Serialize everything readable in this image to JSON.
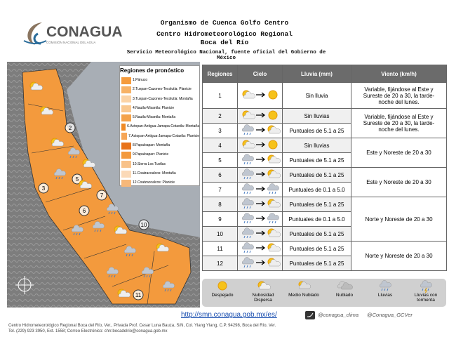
{
  "header": {
    "logo": "CONAGUA",
    "logo_subtitle": "COMISIÓN NACIONAL DEL AGUA",
    "title": "Organismo de Cuenca Golfo Centro",
    "subtitle": "Centro Hidrometeorológico Regional",
    "location": "Boca del Río",
    "source": "Servicio Meteorológico Nacional, fuente oficial del Gobierno de México"
  },
  "map": {
    "legend_title": "Regiones de pronóstico",
    "regions": [
      "1.Pánuco",
      "2.Tuxpan-Cazones-Tecolutla: Planicie",
      "3.Tuxpan-Cazones-Tecolutla: Montaña",
      "4.Nautla-Misantla: Planicie",
      "5.Nautla-Misantla: Montaña",
      "6.Actopan-Antigua-Jamapa-Cotaxtla: Montaña",
      "7.Actopan-Antigua-Jamapa-Cotaxtla: Planicie",
      "8.Papaloapan: Montaña",
      "9.Papaloapan: Planicie",
      "10.Sierra Los Tuxtlas",
      "11.Coatzacoalcos: Montaña",
      "12.Coatzacoalcos: Planicie"
    ],
    "markers": [
      "2",
      "3",
      "5",
      "6",
      "7",
      "10",
      "11"
    ]
  },
  "table": {
    "headers": [
      "Regiones",
      "Cielo",
      "Lluvia (mm)",
      "Viento (km/h)"
    ],
    "rows": [
      {
        "region": "1",
        "rain": "Sin lluvia"
      },
      {
        "region": "2",
        "rain": "Sin lluvias"
      },
      {
        "region": "3",
        "rain": "Puntuales de 5.1 a 25"
      },
      {
        "region": "4",
        "rain": "Sin lluvias"
      },
      {
        "region": "5",
        "rain": "Puntuales de 5.1 a 25"
      },
      {
        "region": "6",
        "rain": "Puntuales de 5.1 a 25"
      },
      {
        "region": "7",
        "rain": "Puntuales de 0.1 a 5.0"
      },
      {
        "region": "8",
        "rain": "Puntuales de 5.1 a 25"
      },
      {
        "region": "9",
        "rain": "Puntuales de 0.1 a 5.0"
      },
      {
        "region": "10",
        "rain": "Puntuales de 5.1 a 25"
      },
      {
        "region": "11",
        "rain": "Puntuales de 5.1 a 25"
      },
      {
        "region": "12",
        "rain": "Puntuales de 5.1 a 25"
      }
    ],
    "wind": [
      "Variable, fijándose al Este y Sureste de 20 a 30, la tarde-noche del lunes.",
      "Variable, fijándose al Este y Sureste de 20 a 30, la tarde-noche del lunes.",
      "Este y Noreste de 20 a 30",
      "Este y Noreste de 20 a 30",
      "Norte y Noreste de 20 a 30",
      "Norte y Noreste de 20 a 30"
    ]
  },
  "sky_legend": [
    "Despejado",
    "Nubosidad Dispersa",
    "Medio Nublado",
    "Nublado",
    "Lluvias",
    "Lluvias con tormenta"
  ],
  "footer": {
    "url": "http://smn.conagua.gob.mx/es/",
    "twitter_1": "@conagua_clima",
    "twitter_2": "@Conagua_GCVer",
    "address": "Centro Hidrometeorológico Regional Boca del Río, Ver., Privada Prof. Cesar Luna Bauza, S/N, Col. Ylang Ylang, C.P. 94298, Boca del Río, Ver.",
    "contact": "Tel. (229) 923 3950, Ext. 1558; Correo Electrónico: chrr.bocadelrio@conagua.gob.mx"
  }
}
